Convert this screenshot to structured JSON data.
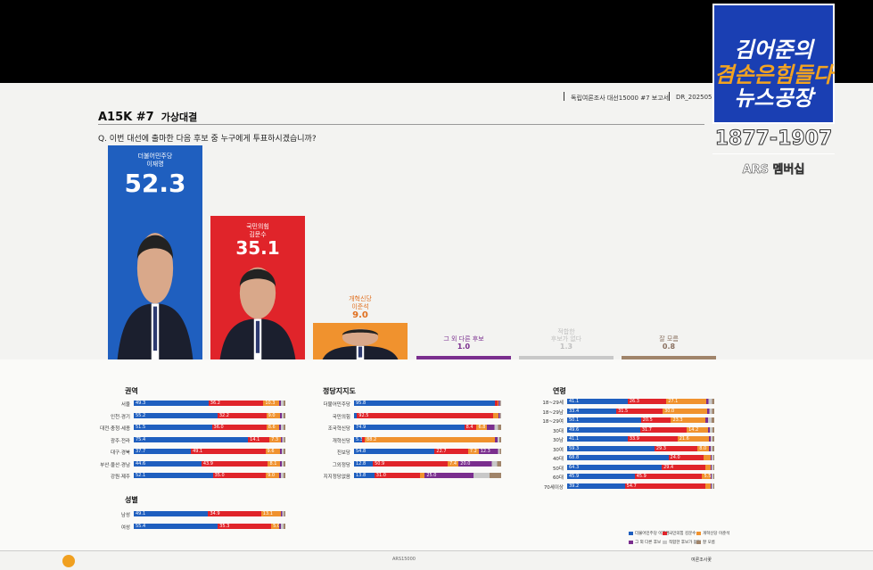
{
  "header": {
    "report": "독립여론조사 대선15000 #7 보고서",
    "date": "DR_20250512"
  },
  "title": {
    "code": "A15K #7",
    "sub": "가상대결"
  },
  "question": "Q. 이번 대선에 출마한 다음 후보 중 누구에게 투표하시겠습니까?",
  "overlay": {
    "logo_line1": "김어준의",
    "logo_line2": "겸손은힘들다",
    "logo_line3": "뉴스공장",
    "phone": "1877-1907",
    "ars": "ARS 멤버십"
  },
  "footer": {
    "center": "ARS15000",
    "right": "여론조사꽃"
  },
  "colors": {
    "dem": "#1f5fbf",
    "ppp": "#e0242a",
    "reform": "#f0922e",
    "other": "#7a2e8e",
    "none": "#c8c8c8",
    "dk": "#a0846a"
  },
  "chart_data": [
    {
      "type": "bar",
      "categories": [
        "더불어민주당 이재명",
        "국민의힘 김문수",
        "개혁신당 이준석",
        "그 외 다른 후보",
        "적합한 후보가 없다",
        "잘 모름"
      ],
      "values": [
        52.3,
        35.1,
        9.0,
        1.0,
        1.3,
        0.8
      ],
      "title": "A15K #7 가상대결",
      "labels": [
        {
          "party": "더불어민주당",
          "name": "이재명"
        },
        {
          "party": "국민의힘",
          "name": "김문수"
        },
        {
          "party": "개혁신당",
          "name": "이준석"
        },
        {
          "party": "",
          "name": "그 외 다른 후보"
        },
        {
          "party": "적합한",
          "name": "후보가 없다"
        },
        {
          "party": "",
          "name": "잘 모름"
        }
      ]
    },
    {
      "type": "bar",
      "stacked": true,
      "title": "권역",
      "categories": [
        "서울",
        "인천·경기",
        "대전·충청·세종",
        "광주·전라",
        "대구·경북",
        "부산·울산·경남",
        "강원·제주"
      ],
      "series": [
        {
          "name": "더불어민주당 이재명",
          "values": [
            49.3,
            55.2,
            51.5,
            75.4,
            37.7,
            44.6,
            52.1
          ]
        },
        {
          "name": "국민의힘 김문수",
          "values": [
            36.2,
            32.2,
            36.0,
            14.1,
            49.1,
            43.9,
            35.0
          ]
        },
        {
          "name": "개혁신당 이준석",
          "values": [
            10.3,
            9.0,
            8.6,
            7.3,
            9.6,
            8.1,
            9.0
          ]
        }
      ]
    },
    {
      "type": "bar",
      "stacked": true,
      "title": "성별",
      "categories": [
        "남성",
        "여성"
      ],
      "series": [
        {
          "name": "더불어민주당 이재명",
          "values": [
            49.1,
            55.4
          ]
        },
        {
          "name": "국민의힘 김문수",
          "values": [
            34.9,
            35.3
          ]
        },
        {
          "name": "개혁신당 이준석",
          "values": [
            13.1,
            5.0
          ]
        }
      ]
    },
    {
      "type": "bar",
      "stacked": true,
      "title": "정당지지도",
      "categories": [
        "더불어민주당",
        "국민의힘",
        "조국혁신당",
        "개혁신당",
        "진보당",
        "그외정당",
        "지지정당없음"
      ],
      "series": [
        {
          "name": "더불어민주당 이재명",
          "values": [
            95.8,
            2.0,
            74.9,
            5.3,
            54.8,
            12.8,
            13.8
          ]
        },
        {
          "name": "국민의힘 김문수",
          "values": [
            1.5,
            92.5,
            8.4,
            2.0,
            22.7,
            50.9,
            31.0
          ]
        },
        {
          "name": "개혁신당 이준석",
          "values": [
            0.8,
            3.5,
            6.8,
            88.2,
            7.2,
            7.4,
            3.3
          ]
        },
        {
          "name": "그 외 다른 후보",
          "values": [
            0.5,
            0.5,
            3.5,
            1.0,
            12.3,
            20.0,
            25.0
          ]
        }
      ]
    },
    {
      "type": "bar",
      "stacked": true,
      "title": "연령",
      "categories": [
        "18~29세",
        "18~29남",
        "18~29여",
        "30대",
        "30남",
        "30여",
        "40대",
        "50대",
        "60대",
        "70세이상"
      ],
      "series": [
        {
          "name": "더불어민주당 이재명",
          "values": [
            41.1,
            33.4,
            50.1,
            49.6,
            41.1,
            59.3,
            68.8,
            64.3,
            45.9,
            39.2
          ]
        },
        {
          "name": "국민의힘 김문수",
          "values": [
            26.3,
            31.5,
            20.5,
            31.7,
            33.9,
            29.3,
            24.0,
            29.4,
            45.9,
            54.7
          ]
        },
        {
          "name": "개혁신당 이준석",
          "values": [
            27.1,
            30.0,
            23.3,
            14.2,
            21.6,
            8.0,
            4.5,
            4.0,
            5.5,
            3.5
          ]
        }
      ]
    }
  ],
  "legend": [
    "더불어민주당 이재명",
    "국민의힘 김문수",
    "개혁신당 이준석",
    "그 외 다른 후보",
    "적합한 후보가 없다",
    "잘 모름"
  ]
}
